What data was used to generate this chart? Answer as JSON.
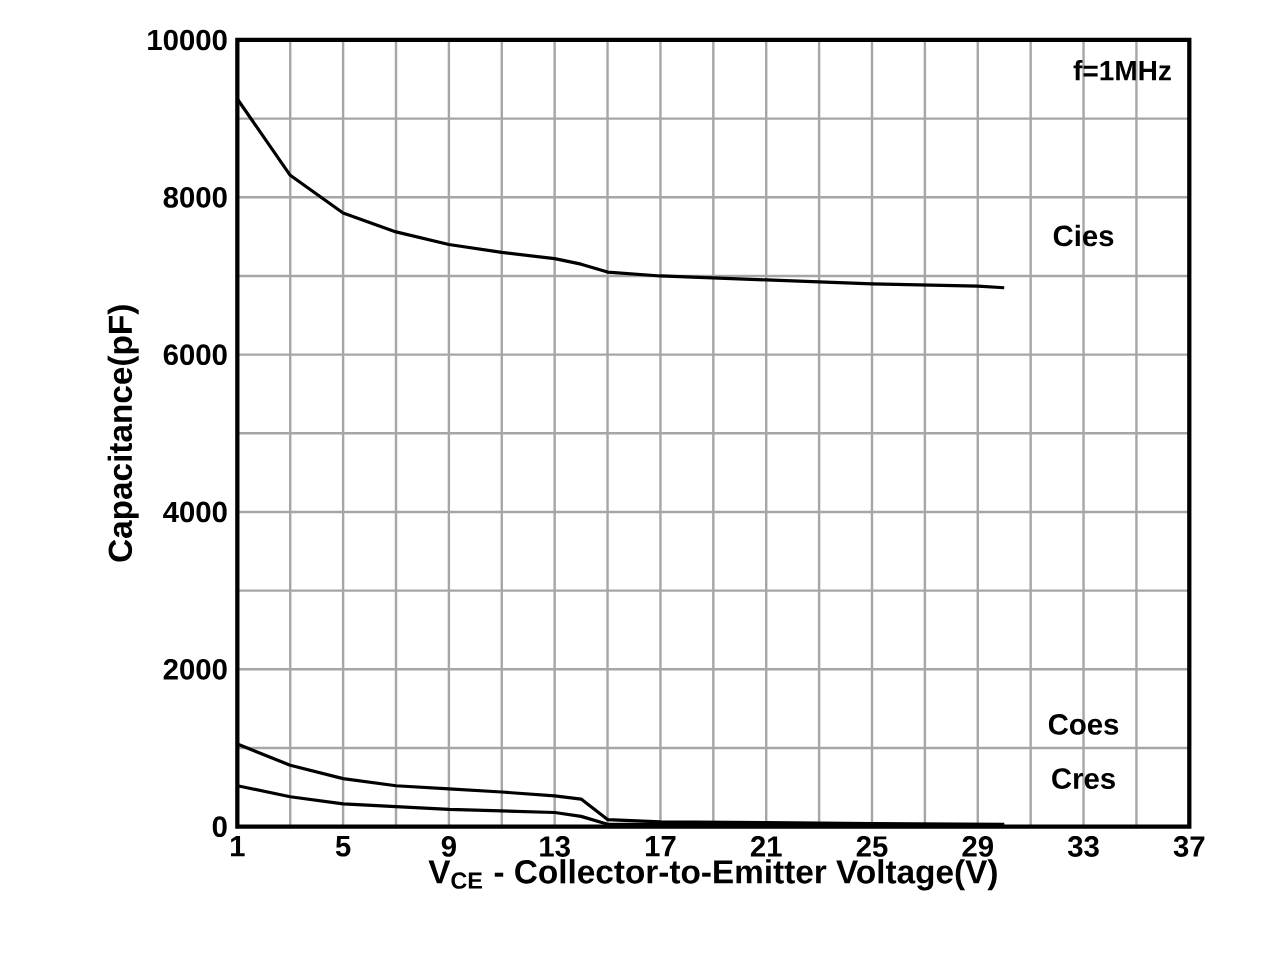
{
  "chart_data": {
    "type": "line",
    "xlabel": "V$_{CE}$ - Collector-to-Emitter Voltage(V)",
    "ylabel": "Capacitance(pF)",
    "annotations": [
      "f=1MHz"
    ],
    "xlim": [
      1,
      37
    ],
    "ylim": [
      0,
      10000
    ],
    "xticks": [
      1,
      {
        "value": 3,
        "label": null
      },
      5,
      {
        "value": 7,
        "label": null
      },
      9,
      {
        "value": 11,
        "label": null
      },
      13,
      {
        "value": 15,
        "label": null
      },
      17,
      {
        "value": 19,
        "label": null
      },
      21,
      {
        "value": 23,
        "label": null
      },
      25,
      {
        "value": 27,
        "label": null
      },
      29,
      {
        "value": 31,
        "label": null
      },
      33,
      {
        "value": 35,
        "label": null
      },
      37
    ],
    "yticks": [
      0,
      {
        "value": 1000,
        "label": null
      },
      2000,
      {
        "value": 3000,
        "label": null
      },
      4000,
      {
        "value": 5000,
        "label": null
      },
      6000,
      {
        "value": 7000,
        "label": null
      },
      8000,
      {
        "value": 9000,
        "label": null
      },
      10000
    ],
    "grid": true,
    "marker": "none",
    "line_style": "solid",
    "series": [
      {
        "name": "Cies",
        "color": "#000000",
        "x": [
          1,
          3,
          5,
          7,
          9,
          11,
          13,
          14,
          15,
          17,
          21,
          25,
          29,
          30
        ],
        "values": [
          9250,
          8280,
          7800,
          7560,
          7400,
          7300,
          7220,
          7150,
          7050,
          7000,
          6950,
          6900,
          6870,
          6850
        ]
      },
      {
        "name": "Coes",
        "color": "#000000",
        "x": [
          1,
          3,
          5,
          7,
          9,
          11,
          13,
          14,
          15,
          17,
          21,
          25,
          30
        ],
        "values": [
          1050,
          780,
          610,
          520,
          480,
          440,
          390,
          350,
          90,
          60,
          50,
          40,
          30
        ]
      },
      {
        "name": "Cres",
        "color": "#000000",
        "x": [
          1,
          3,
          5,
          9,
          13,
          14,
          15,
          17,
          21,
          25,
          30
        ],
        "values": [
          520,
          380,
          290,
          220,
          180,
          130,
          30,
          30,
          20,
          20,
          20
        ]
      }
    ]
  }
}
